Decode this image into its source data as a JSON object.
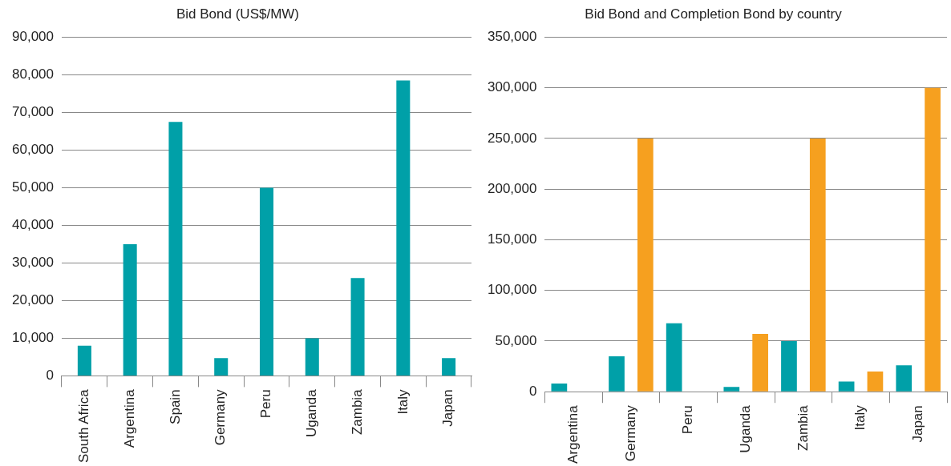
{
  "chart_data": [
    {
      "type": "bar",
      "title": "Bid Bond (US$/MW)",
      "categories": [
        "South Africa",
        "Argentina",
        "Spain",
        "Germany",
        "Peru",
        "Uganda",
        "Zambia",
        "Italy",
        "Japan"
      ],
      "values": [
        8000,
        35000,
        67500,
        4700,
        50000,
        10000,
        26000,
        78500,
        4700
      ],
      "color": "#00a0a8",
      "ylim": [
        0,
        90000
      ],
      "yticks": [
        {
          "value": 0,
          "label": "0"
        },
        {
          "value": 10000,
          "label": "10,000"
        },
        {
          "value": 20000,
          "label": "20,000"
        },
        {
          "value": 30000,
          "label": "30,000"
        },
        {
          "value": 40000,
          "label": "40,000"
        },
        {
          "value": 50000,
          "label": "50,000"
        },
        {
          "value": 60000,
          "label": "60,000"
        },
        {
          "value": 70000,
          "label": "70,000"
        },
        {
          "value": 80000,
          "label": "80,000"
        },
        {
          "value": 90000,
          "label": "90,000"
        }
      ],
      "grid": "y"
    },
    {
      "type": "bar",
      "title": "Bid Bond and Completion Bond by country",
      "categories": [
        "Argentina",
        "Germany",
        "Peru",
        "Uganda",
        "Zambia",
        "Italy",
        "Japan"
      ],
      "series": [
        {
          "color": "#00a0a8",
          "values": [
            8000,
            35000,
            67500,
            4700,
            50000,
            10000,
            26000
          ]
        },
        {
          "color": "#f6a01f",
          "values": [
            null,
            250000,
            null,
            57000,
            250000,
            20000,
            300000
          ]
        }
      ],
      "ylim": [
        0,
        350000
      ],
      "yticks": [
        {
          "value": 0,
          "label": "0"
        },
        {
          "value": 50000,
          "label": "50,000"
        },
        {
          "value": 100000,
          "label": "100,000"
        },
        {
          "value": 150000,
          "label": "150,000"
        },
        {
          "value": 200000,
          "label": "200,000"
        },
        {
          "value": 250000,
          "label": "250,000"
        },
        {
          "value": 300000,
          "label": "300,000"
        },
        {
          "value": 350000,
          "label": "350,000"
        }
      ],
      "grid": "y"
    }
  ]
}
